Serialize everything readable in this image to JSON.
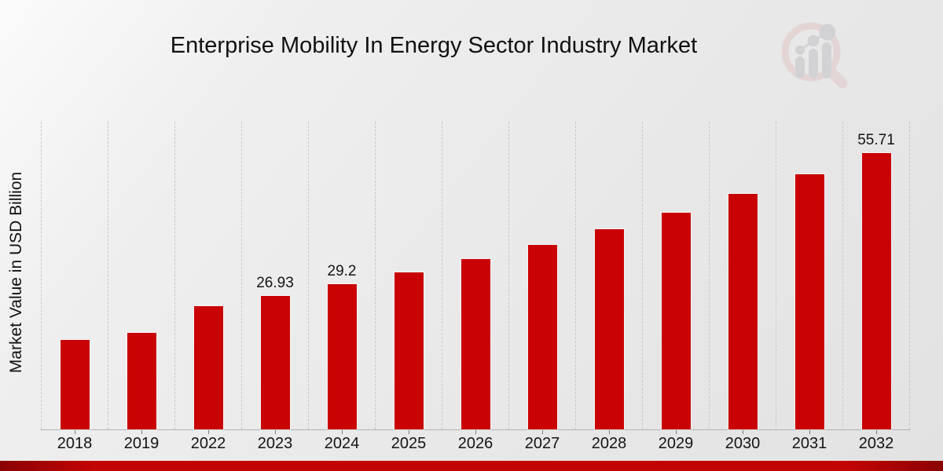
{
  "chart_data": {
    "type": "bar",
    "title": "Enterprise Mobility In Energy Sector Industry Market",
    "ylabel": "Market Value in USD Billion",
    "xlabel": "",
    "categories": [
      "2018",
      "2019",
      "2022",
      "2023",
      "2024",
      "2025",
      "2026",
      "2027",
      "2028",
      "2029",
      "2030",
      "2031",
      "2032"
    ],
    "values": [
      18.0,
      19.5,
      24.85,
      26.93,
      29.2,
      31.66,
      34.32,
      37.21,
      40.34,
      43.73,
      47.41,
      51.4,
      55.71
    ],
    "bar_labels": [
      "",
      "",
      "",
      "26.93",
      "29.2",
      "",
      "",
      "",
      "",
      "",
      "",
      "",
      "55.71"
    ],
    "ylim": [
      0,
      62
    ],
    "grid": "vertical-dashed",
    "legend": "none",
    "bar_color": "#c90304"
  },
  "logo": {
    "icon": "bar-chart-magnifier-logo",
    "circle_color": "#e2cbcb",
    "bars_color": "#c6c6ca"
  },
  "footer_bar": {
    "edge_color": "#8b0303",
    "center_color": "#c20404"
  }
}
